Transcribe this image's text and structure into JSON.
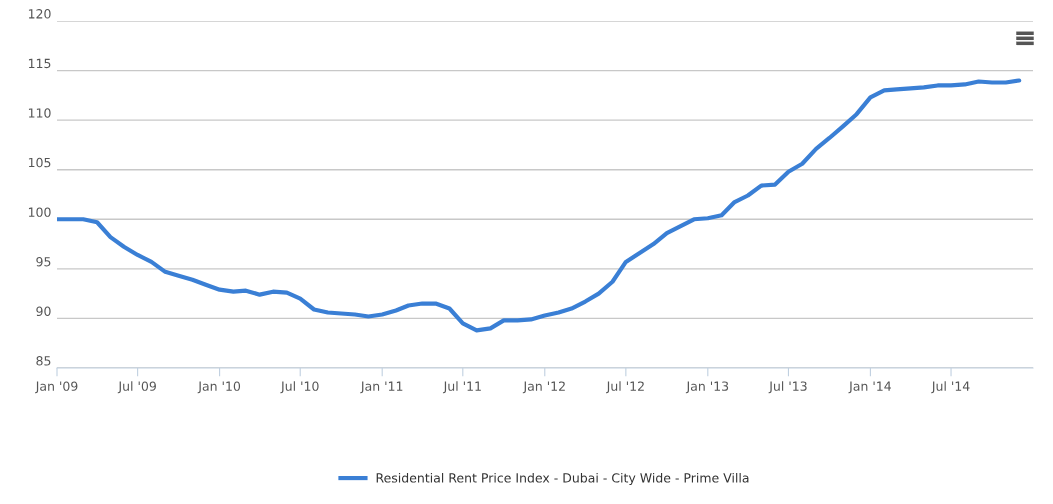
{
  "chart_data": {
    "type": "line",
    "x": [
      "2009-01",
      "2009-02",
      "2009-03",
      "2009-04",
      "2009-05",
      "2009-06",
      "2009-07",
      "2009-08",
      "2009-09",
      "2009-10",
      "2009-11",
      "2009-12",
      "2010-01",
      "2010-02",
      "2010-03",
      "2010-04",
      "2010-05",
      "2010-06",
      "2010-07",
      "2010-08",
      "2010-09",
      "2010-10",
      "2010-11",
      "2010-12",
      "2011-01",
      "2011-02",
      "2011-03",
      "2011-04",
      "2011-05",
      "2011-06",
      "2011-07",
      "2011-08",
      "2011-09",
      "2011-10",
      "2011-11",
      "2011-12",
      "2012-01",
      "2012-02",
      "2012-03",
      "2012-04",
      "2012-05",
      "2012-06",
      "2012-07",
      "2012-08",
      "2012-09",
      "2012-10",
      "2012-11",
      "2012-12",
      "2013-01",
      "2013-02",
      "2013-03",
      "2013-04",
      "2013-05",
      "2013-06",
      "2013-07",
      "2013-08",
      "2013-09",
      "2013-10",
      "2013-11",
      "2013-12",
      "2014-01",
      "2014-02",
      "2014-03",
      "2014-04",
      "2014-05",
      "2014-06",
      "2014-07",
      "2014-08",
      "2014-09",
      "2014-10",
      "2014-11",
      "2014-12"
    ],
    "series": [
      {
        "name": "Residential Rent Price Index - Dubai - City Wide - Prime Villa",
        "color": "#3a7fd5",
        "values": [
          100,
          100,
          100,
          99.7,
          98.2,
          97.2,
          96.4,
          95.7,
          94.7,
          94.3,
          93.9,
          93.4,
          92.9,
          92.7,
          92.8,
          92.4,
          92.7,
          92.6,
          92.0,
          90.9,
          90.6,
          90.5,
          90.4,
          90.2,
          90.4,
          90.8,
          91.3,
          91.5,
          91.5,
          91.0,
          89.5,
          88.8,
          89.0,
          89.8,
          89.8,
          89.9,
          90.3,
          90.6,
          91.0,
          91.7,
          92.5,
          93.7,
          95.7,
          96.6,
          97.5,
          98.6,
          99.3,
          100.0,
          100.1,
          100.4,
          101.7,
          102.4,
          103.4,
          103.5,
          104.8,
          105.6,
          107.1,
          108.2,
          109.4,
          110.6,
          112.3,
          113.0,
          113.1,
          113.2,
          113.3,
          113.5,
          113.5,
          113.6,
          113.9,
          113.8,
          113.8,
          114.0
        ]
      }
    ],
    "xlim": [
      "2009-01",
      "2015-01"
    ],
    "xticks": [
      {
        "value": "2009-01",
        "label": "Jan '09"
      },
      {
        "value": "2009-07",
        "label": "Jul '09"
      },
      {
        "value": "2010-01",
        "label": "Jan '10"
      },
      {
        "value": "2010-07",
        "label": "Jul '10"
      },
      {
        "value": "2011-01",
        "label": "Jan '11"
      },
      {
        "value": "2011-07",
        "label": "Jul '11"
      },
      {
        "value": "2012-01",
        "label": "Jan '12"
      },
      {
        "value": "2012-07",
        "label": "Jul '12"
      },
      {
        "value": "2013-01",
        "label": "Jan '13"
      },
      {
        "value": "2013-07",
        "label": "Jul '13"
      },
      {
        "value": "2014-01",
        "label": "Jan '14"
      },
      {
        "value": "2014-07",
        "label": "Jul '14"
      }
    ],
    "ylim": [
      85,
      120
    ],
    "yticks": [
      85,
      90,
      95,
      100,
      105,
      110,
      115,
      120
    ],
    "grid": "y",
    "legend": "bottom",
    "marker": "none",
    "line_style": "solid"
  }
}
